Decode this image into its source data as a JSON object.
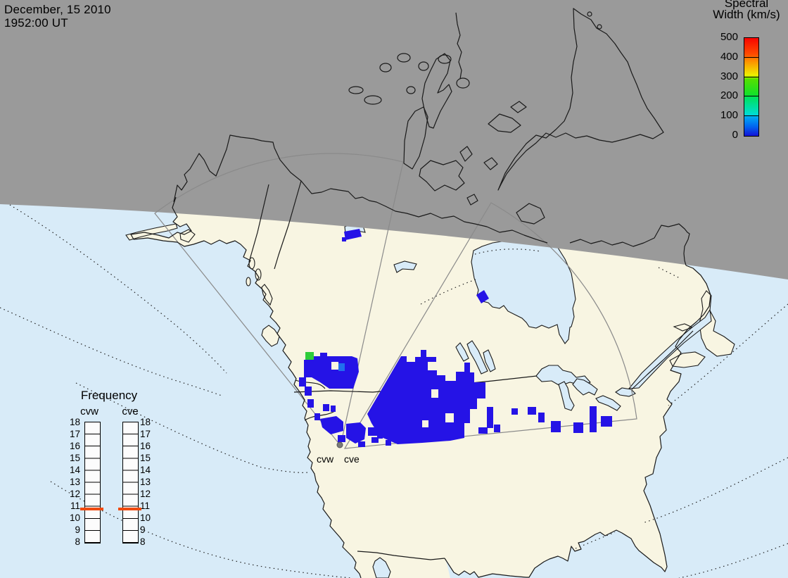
{
  "datetime": {
    "date": "December, 15 2010",
    "time": "1952:00 UT"
  },
  "colorbar": {
    "title_line1": "Spectral",
    "title_line2": "Width (km/s)",
    "ticks": [
      "500",
      "400",
      "300",
      "200",
      "100",
      "0"
    ],
    "unit": "km/s",
    "range": [
      0,
      500
    ],
    "gradient_stops": [
      [
        "0%",
        "#1414d8"
      ],
      [
        "10%",
        "#0068f0"
      ],
      [
        "19%",
        "#00a6f4"
      ],
      [
        "22%",
        "#00ddd2"
      ],
      [
        "39%",
        "#00e060"
      ],
      [
        "42%",
        "#12e02a"
      ],
      [
        "58%",
        "#55e000"
      ],
      [
        "62%",
        "#eeee00"
      ],
      [
        "78%",
        "#ff8400"
      ],
      [
        "83%",
        "#ff4e00"
      ],
      [
        "100%",
        "#f80400"
      ]
    ]
  },
  "frequency_panel": {
    "title": "Frequency",
    "columns": [
      "cvw",
      "cve"
    ],
    "ticks": [
      "18",
      "17",
      "16",
      "15",
      "14",
      "13",
      "12",
      "11",
      "10",
      "9",
      "8"
    ],
    "axis_range_mhz": [
      8,
      18
    ],
    "marker_value_mhz": 10.8,
    "marker_color": "#f04a10"
  },
  "map": {
    "radar_labels": [
      "cvw",
      "cve"
    ],
    "colors": {
      "night_shade": "#9a9a9a",
      "ocean": "#d8ebf8",
      "land": "#f8f5e2",
      "coastline": "#1a1a1a",
      "fan_line": "#8a8a8a",
      "echo_blue": "#2513e6",
      "echo_mid_blue": "#2070ee",
      "echo_green": "#2ecc3a",
      "radar_dot": "#7a7a7a"
    },
    "echoes": {
      "rects": [
        [
          425,
          536,
          10,
          13
        ],
        [
          433,
          549,
          10,
          13
        ],
        [
          437,
          567,
          9,
          12
        ],
        [
          447,
          587,
          8,
          10
        ],
        [
          459,
          574,
          9,
          10
        ],
        [
          470,
          576,
          7,
          9
        ],
        [
          480,
          618,
          11,
          10
        ],
        [
          509,
          627,
          10,
          8
        ],
        [
          523,
          607,
          16,
          12
        ],
        [
          528,
          621,
          10,
          8
        ],
        [
          536,
          615,
          8,
          8
        ],
        [
          548,
          625,
          8,
          8
        ],
        [
          692,
          578,
          9,
          30
        ],
        [
          680,
          607,
          13,
          9
        ],
        [
          702,
          603,
          9,
          11
        ],
        [
          727,
          580,
          9,
          9
        ],
        [
          750,
          578,
          12,
          11
        ],
        [
          765,
          586,
          9,
          14
        ],
        [
          783,
          598,
          14,
          16
        ],
        [
          815,
          600,
          14,
          15
        ],
        [
          838,
          577,
          10,
          37
        ],
        [
          854,
          591,
          16,
          15
        ]
      ],
      "polygons": [
        "M570,506 L578,506 578,514 590,514 590,507 598,507 598,497 606,497 606,507 620,507 620,514 608,514 608,526 621,526 621,533 633,533 633,541 648,541 648,528 660,528 660,515 668,515 668,529 674,529 674,543 690,543 690,566 678,566 678,581 668,581 668,601 660,601 660,622 640,626 600,629 565,631 540,620 528,601 522,588 Z",
        "M432,511 443,511 443,506 455,506 455,501 465,501 465,506 500,506 508,509 510,528 502,552 468,552 455,543 443,536 432,536 Z",
        "M455,595 478,591 488,599 488,612 470,617 458,607 Z",
        "M492,602 512,600 520,608 518,624 505,630 492,622 Z",
        "M677,419 688,412 695,424 684,431 Z",
        "M489,329 511,325 514,336 491,341 Z"
      ],
      "holes": [
        [
          613,
          553,
          10,
          12
        ],
        [
          600,
          597,
          9,
          10
        ],
        [
          633,
          587,
          12,
          13
        ],
        [
          471,
          514,
          10,
          11
        ]
      ],
      "green_cell": [
        434,
        500,
        12,
        11
      ],
      "mid_blue_cell": [
        481,
        516,
        9,
        11
      ],
      "small_rect": [
        486,
        337,
        6,
        6
      ]
    }
  }
}
